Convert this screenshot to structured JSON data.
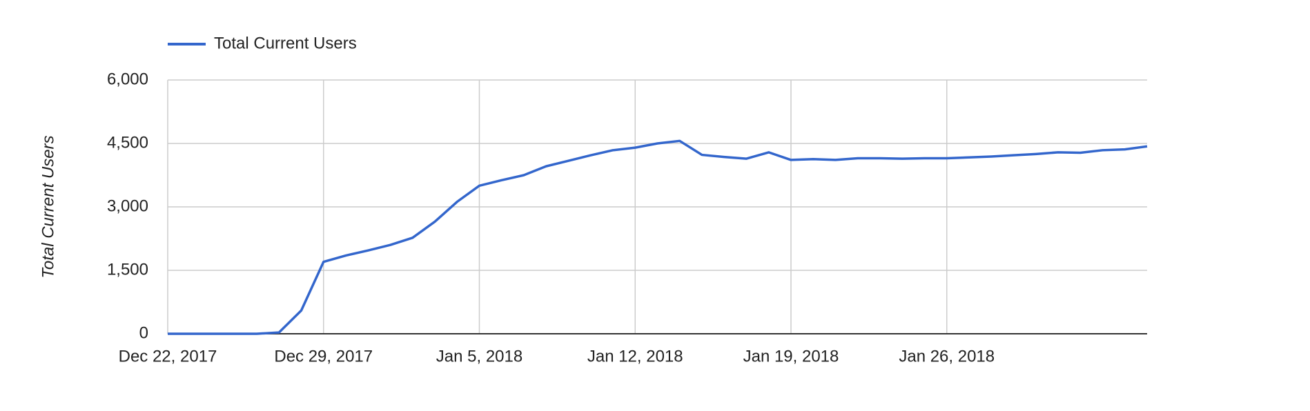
{
  "chart_data": {
    "type": "line",
    "y_label": "Total Current Users",
    "x": [
      "2017-12-22",
      "2017-12-23",
      "2017-12-24",
      "2017-12-25",
      "2017-12-26",
      "2017-12-27",
      "2017-12-28",
      "2017-12-29",
      "2017-12-30",
      "2017-12-31",
      "2018-01-01",
      "2018-01-02",
      "2018-01-03",
      "2018-01-04",
      "2018-01-05",
      "2018-01-06",
      "2018-01-07",
      "2018-01-08",
      "2018-01-09",
      "2018-01-10",
      "2018-01-11",
      "2018-01-12",
      "2018-01-13",
      "2018-01-14",
      "2018-01-15",
      "2018-01-16",
      "2018-01-17",
      "2018-01-18",
      "2018-01-19",
      "2018-01-20",
      "2018-01-21",
      "2018-01-22",
      "2018-01-23",
      "2018-01-24",
      "2018-01-25",
      "2018-01-26",
      "2018-01-27",
      "2018-01-28",
      "2018-01-29",
      "2018-01-30",
      "2018-01-31",
      "2018-02-01",
      "2018-02-02",
      "2018-02-03",
      "2018-02-04"
    ],
    "series": [
      {
        "name": "Total Current Users",
        "color": "#3366cc",
        "values": [
          0,
          0,
          0,
          0,
          0,
          30,
          550,
          1700,
          1850,
          1970,
          2100,
          2270,
          2650,
          3120,
          3500,
          3630,
          3750,
          3960,
          4090,
          4220,
          4340,
          4400,
          4500,
          4560,
          4230,
          4180,
          4140,
          4290,
          4110,
          4130,
          4110,
          4150,
          4150,
          4140,
          4150,
          4150,
          4170,
          4190,
          4220,
          4250,
          4290,
          4280,
          4340,
          4360,
          4430
        ]
      }
    ],
    "xlim": [
      "2017-12-22",
      "2018-02-04"
    ],
    "xticks": [
      {
        "value": "2017-12-22",
        "label": "Dec 22, 2017"
      },
      {
        "value": "2017-12-29",
        "label": "Dec 29, 2017"
      },
      {
        "value": "2018-01-05",
        "label": "Jan 5, 2018"
      },
      {
        "value": "2018-01-12",
        "label": "Jan 12, 2018"
      },
      {
        "value": "2018-01-19",
        "label": "Jan 19, 2018"
      },
      {
        "value": "2018-01-26",
        "label": "Jan 26, 2018"
      }
    ],
    "ylim": [
      0,
      6000
    ],
    "yticks": [
      0,
      {
        "value": 1500,
        "label": "1,500"
      },
      {
        "value": 3000,
        "label": "3,000"
      },
      {
        "value": 4500,
        "label": "4,500"
      },
      {
        "value": 6000,
        "label": "6,000"
      }
    ],
    "grid": true,
    "legend": "top"
  }
}
